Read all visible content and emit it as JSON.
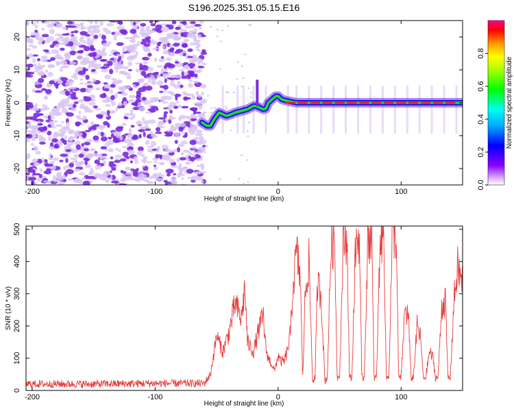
{
  "title": "S196.2025.351.05.15.E16",
  "colors": {
    "snr_line": "#e83a3a",
    "scatter_purple": "#7a2bdc",
    "scatter_light": "#d8c4f4",
    "line_blue": "#1a1aff",
    "line_green": "#22dd22",
    "line_red": "#ee2020"
  },
  "chart_data": [
    {
      "type": "heatmap",
      "name": "spectrogram",
      "xlabel": "Height of straight line (km)",
      "ylabel": "Frequency (Hz)",
      "xlim": [
        -205,
        150
      ],
      "ylim": [
        -25,
        25
      ],
      "xticks": [
        -200,
        -100,
        0,
        100
      ],
      "yticks": [
        -20,
        -10,
        0,
        10,
        20
      ],
      "xtick_labels": [
        "-200",
        "-100",
        "0",
        "100"
      ],
      "ytick_labels": [
        "-20",
        "-10",
        "0",
        "10",
        "20"
      ],
      "noise_region_xmax": -60,
      "carrier_trace": {
        "x": [
          -62,
          -58,
          -55,
          -52,
          -48,
          -45,
          -42,
          -38,
          -35,
          -30,
          -25,
          -20,
          -18,
          -15,
          -12,
          -10,
          -8,
          -5,
          -2,
          0,
          3,
          8,
          15,
          25,
          40,
          60,
          80,
          100,
          120,
          140,
          150
        ],
        "freq": [
          -6,
          -7,
          -7,
          -5,
          -3,
          -3.5,
          -4,
          -3.5,
          -3,
          -2.5,
          -2,
          -1,
          -1,
          -1.5,
          -2,
          -1.8,
          0,
          1,
          2,
          2,
          1,
          0.5,
          0,
          0,
          0,
          0,
          0,
          0,
          0,
          0,
          0
        ]
      },
      "colorbar": {
        "label": "Normalized spectral amplitude",
        "range": [
          0,
          1
        ],
        "ticks": [
          0.0,
          0.2,
          0.4,
          0.6,
          0.8
        ],
        "tick_labels": [
          "0.0",
          "0.2",
          "0.4",
          "0.6",
          "0.8"
        ]
      }
    },
    {
      "type": "line",
      "name": "snr",
      "xlabel": "Height of straight line (km)",
      "ylabel": "SNR (10 * v/v)",
      "xlim": [
        -205,
        150
      ],
      "ylim": [
        0,
        510
      ],
      "xticks": [
        -200,
        -100,
        0,
        100
      ],
      "yticks": [
        0,
        100,
        200,
        300,
        400,
        500
      ],
      "xtick_labels": [
        "-200",
        "-100",
        "0",
        "100"
      ],
      "ytick_labels": [
        "0",
        "100",
        "200",
        "300",
        "400",
        "500"
      ],
      "series": [
        {
          "name": "SNR",
          "x": [
            -205,
            -150,
            -100,
            -60,
            -55,
            -50,
            -45,
            -40,
            -35,
            -30,
            -27,
            -25,
            -20,
            -15,
            -12,
            -10,
            -8,
            -5,
            -3,
            0,
            2,
            5,
            8,
            10,
            12,
            15,
            18,
            20,
            22,
            25,
            28,
            30,
            32,
            35,
            38,
            40,
            43,
            46,
            48,
            50,
            53,
            56,
            58,
            60,
            63,
            66,
            68,
            70,
            73,
            76,
            78,
            80,
            83,
            86,
            88,
            90,
            93,
            96,
            98,
            100,
            103,
            106,
            108,
            110,
            113,
            116,
            118,
            120,
            123,
            126,
            128,
            130,
            133,
            136,
            138,
            140,
            143,
            146,
            150
          ],
          "values": [
            20,
            20,
            22,
            22,
            50,
            170,
            120,
            180,
            270,
            220,
            320,
            150,
            120,
            200,
            230,
            130,
            100,
            80,
            60,
            110,
            90,
            90,
            130,
            180,
            320,
            430,
            350,
            40,
            300,
            400,
            30,
            40,
            330,
            300,
            30,
            40,
            450,
            460,
            40,
            50,
            460,
            480,
            40,
            40,
            450,
            480,
            40,
            40,
            470,
            490,
            40,
            40,
            480,
            470,
            40,
            40,
            500,
            480,
            40,
            40,
            250,
            230,
            40,
            40,
            200,
            160,
            40,
            40,
            120,
            100,
            40,
            40,
            260,
            280,
            40,
            40,
            280,
            380,
            330
          ]
        }
      ]
    }
  ]
}
